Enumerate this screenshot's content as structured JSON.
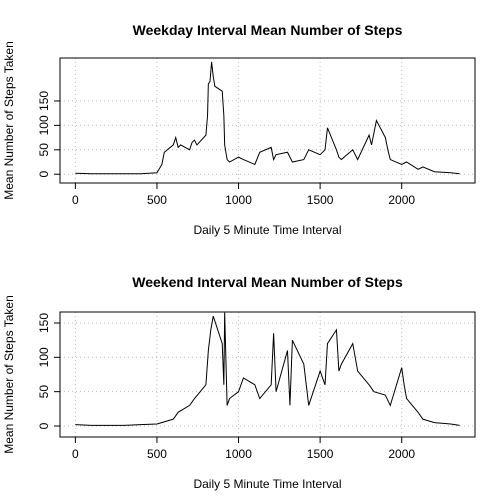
{
  "chart_data": [
    {
      "type": "line",
      "title": "Weekday Interval Mean Number of Steps",
      "xlabel": "Daily 5 Minute Time Interval",
      "ylabel": "Mean Number of Steps Taken",
      "color": "#000000",
      "grid": true,
      "x": [
        0,
        100,
        200,
        300,
        400,
        500,
        530,
        545,
        600,
        615,
        630,
        645,
        700,
        715,
        730,
        745,
        800,
        810,
        815,
        825,
        835,
        845,
        855,
        900,
        910,
        915,
        930,
        945,
        1000,
        1030,
        1100,
        1130,
        1200,
        1215,
        1230,
        1300,
        1330,
        1400,
        1430,
        1500,
        1530,
        1545,
        1600,
        1615,
        1630,
        1700,
        1730,
        1800,
        1815,
        1845,
        1900,
        1915,
        1930,
        2000,
        2030,
        2100,
        2130,
        2200,
        2300,
        2355
      ],
      "values": [
        2,
        1,
        1,
        1,
        1,
        3,
        20,
        45,
        60,
        75,
        55,
        60,
        50,
        65,
        70,
        60,
        80,
        120,
        185,
        190,
        230,
        200,
        180,
        170,
        120,
        60,
        30,
        25,
        35,
        30,
        20,
        45,
        55,
        30,
        40,
        45,
        25,
        30,
        50,
        40,
        50,
        95,
        50,
        35,
        30,
        50,
        30,
        80,
        60,
        110,
        75,
        50,
        30,
        20,
        25,
        10,
        15,
        5,
        3,
        1
      ],
      "xlim": [
        -94.2,
        2449.2
      ],
      "ylim": [
        -18,
        238
      ],
      "xticks": [
        0,
        500,
        1000,
        1500,
        2000
      ],
      "yticks": [
        0,
        50,
        100,
        150
      ]
    },
    {
      "type": "line",
      "title": "Weekend Interval Mean Number of Steps",
      "xlabel": "Daily 5 Minute Time Interval",
      "ylabel": "Mean Number of Steps Taken",
      "color": "#000000",
      "grid": true,
      "x": [
        0,
        100,
        200,
        300,
        400,
        500,
        600,
        630,
        700,
        730,
        800,
        815,
        830,
        845,
        900,
        910,
        915,
        930,
        945,
        1000,
        1030,
        1100,
        1130,
        1200,
        1215,
        1230,
        1300,
        1315,
        1330,
        1400,
        1415,
        1430,
        1500,
        1530,
        1545,
        1600,
        1615,
        1630,
        1700,
        1715,
        1730,
        1800,
        1830,
        1900,
        1930,
        2000,
        2015,
        2030,
        2100,
        2130,
        2200,
        2300,
        2355
      ],
      "values": [
        2,
        1,
        1,
        1,
        2,
        3,
        10,
        20,
        30,
        40,
        60,
        110,
        140,
        160,
        120,
        60,
        165,
        30,
        40,
        50,
        70,
        60,
        40,
        60,
        135,
        50,
        110,
        30,
        125,
        90,
        60,
        30,
        80,
        60,
        120,
        140,
        80,
        90,
        120,
        100,
        80,
        60,
        50,
        45,
        30,
        85,
        60,
        40,
        20,
        10,
        5,
        3,
        1
      ],
      "xlim": [
        -94.2,
        2449.2
      ],
      "ylim": [
        -16,
        166
      ],
      "xticks": [
        0,
        500,
        1000,
        1500,
        2000
      ],
      "yticks": [
        0,
        50,
        100,
        150
      ]
    }
  ]
}
